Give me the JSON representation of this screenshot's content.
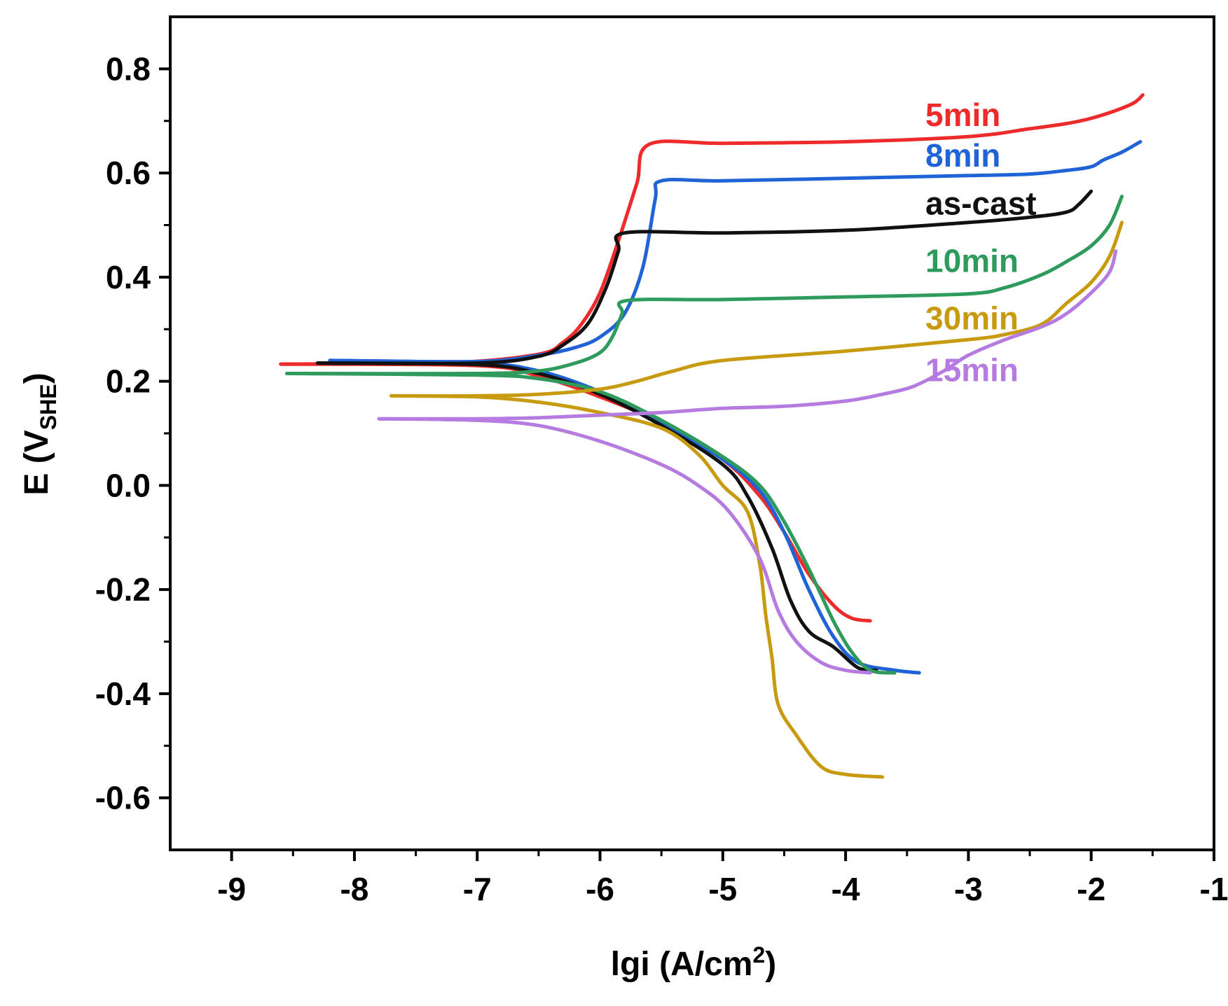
{
  "chart_data": {
    "type": "line",
    "title": "",
    "xlabel": "lgi (A/cm2)",
    "xlabel_main": "lgi (A/cm",
    "xlabel_sup": "2",
    "xlabel_close": ")",
    "ylabel": "E (VSHE)",
    "ylabel_main": "E (V",
    "ylabel_sub": "SHE",
    "ylabel_close": ")",
    "xlim": [
      -9.5,
      -1
    ],
    "ylim": [
      -0.7,
      0.9
    ],
    "xticks": [
      -9,
      -8,
      -7,
      -6,
      -5,
      -4,
      -3,
      -2,
      -1
    ],
    "xtick_labels": [
      "-9",
      "-8",
      "-7",
      "-6",
      "-5",
      "-4",
      "-3",
      "-2",
      "-1"
    ],
    "yticks": [
      0.8,
      0.6,
      0.4,
      0.2,
      0.0,
      -0.2,
      -0.4,
      -0.6
    ],
    "ytick_labels": [
      "0.8",
      "0.6",
      "0.4",
      "0.2",
      "0.0",
      "-0.2",
      "-0.4",
      "-0.6"
    ],
    "legend_labels": [
      {
        "text": "5min",
        "color": "#ee2b2b",
        "x": -3.35,
        "y": 0.69
      },
      {
        "text": "8min",
        "color": "#1f63d6",
        "x": -3.35,
        "y": 0.612
      },
      {
        "text": "as-cast",
        "color": "#111111",
        "x": -3.35,
        "y": 0.52
      },
      {
        "text": "10min",
        "color": "#2e9b5c",
        "x": -3.35,
        "y": 0.41
      },
      {
        "text": "30min",
        "color": "#c89a10",
        "x": -3.35,
        "y": 0.3
      },
      {
        "text": "15min",
        "color": "#b57be0",
        "x": -3.35,
        "y": 0.2
      }
    ],
    "series": [
      {
        "name": "5min",
        "color": "#ee2b2b",
        "anodic": [
          [
            -8.6,
            0.233
          ],
          [
            -7.2,
            0.236
          ],
          [
            -6.5,
            0.252
          ],
          [
            -6.3,
            0.275
          ],
          [
            -6.15,
            0.31
          ],
          [
            -6.0,
            0.37
          ],
          [
            -5.85,
            0.47
          ],
          [
            -5.7,
            0.58
          ],
          [
            -5.6,
            0.655
          ],
          [
            -5.0,
            0.657
          ],
          [
            -4.0,
            0.66
          ],
          [
            -3.0,
            0.67
          ],
          [
            -2.5,
            0.685
          ],
          [
            -2.2,
            0.695
          ],
          [
            -2.0,
            0.705
          ],
          [
            -1.8,
            0.72
          ],
          [
            -1.65,
            0.735
          ],
          [
            -1.58,
            0.75
          ]
        ],
        "cathodic": [
          [
            -8.6,
            0.233
          ],
          [
            -7.0,
            0.23
          ],
          [
            -6.5,
            0.21
          ],
          [
            -6.0,
            0.17
          ],
          [
            -5.5,
            0.12
          ],
          [
            -5.0,
            0.05
          ],
          [
            -4.7,
            -0.02
          ],
          [
            -4.5,
            -0.09
          ],
          [
            -4.3,
            -0.17
          ],
          [
            -4.1,
            -0.23
          ],
          [
            -3.95,
            -0.255
          ],
          [
            -3.8,
            -0.26
          ]
        ]
      },
      {
        "name": "8min",
        "color": "#1f63d6",
        "anodic": [
          [
            -8.2,
            0.24
          ],
          [
            -7.0,
            0.238
          ],
          [
            -6.5,
            0.25
          ],
          [
            -6.2,
            0.265
          ],
          [
            -6.0,
            0.285
          ],
          [
            -5.8,
            0.33
          ],
          [
            -5.65,
            0.42
          ],
          [
            -5.55,
            0.55
          ],
          [
            -5.5,
            0.585
          ],
          [
            -5.0,
            0.585
          ],
          [
            -4.0,
            0.59
          ],
          [
            -3.0,
            0.595
          ],
          [
            -2.5,
            0.598
          ],
          [
            -2.2,
            0.605
          ],
          [
            -2.0,
            0.612
          ],
          [
            -1.9,
            0.625
          ],
          [
            -1.75,
            0.64
          ],
          [
            -1.6,
            0.66
          ]
        ],
        "cathodic": [
          [
            -8.2,
            0.24
          ],
          [
            -7.0,
            0.235
          ],
          [
            -6.5,
            0.22
          ],
          [
            -6.0,
            0.18
          ],
          [
            -5.5,
            0.12
          ],
          [
            -5.0,
            0.05
          ],
          [
            -4.7,
            -0.01
          ],
          [
            -4.5,
            -0.09
          ],
          [
            -4.3,
            -0.2
          ],
          [
            -4.1,
            -0.29
          ],
          [
            -3.9,
            -0.34
          ],
          [
            -3.6,
            -0.355
          ],
          [
            -3.4,
            -0.36
          ]
        ]
      },
      {
        "name": "as-cast",
        "color": "#111111",
        "anodic": [
          [
            -8.3,
            0.235
          ],
          [
            -7.0,
            0.235
          ],
          [
            -6.5,
            0.248
          ],
          [
            -6.3,
            0.27
          ],
          [
            -6.1,
            0.31
          ],
          [
            -5.95,
            0.38
          ],
          [
            -5.85,
            0.45
          ],
          [
            -5.8,
            0.485
          ],
          [
            -5.0,
            0.485
          ],
          [
            -4.0,
            0.49
          ],
          [
            -3.0,
            0.505
          ],
          [
            -2.5,
            0.515
          ],
          [
            -2.2,
            0.525
          ],
          [
            -2.1,
            0.54
          ],
          [
            -2.0,
            0.565
          ]
        ],
        "cathodic": [
          [
            -8.3,
            0.235
          ],
          [
            -7.0,
            0.232
          ],
          [
            -6.5,
            0.215
          ],
          [
            -6.0,
            0.175
          ],
          [
            -5.5,
            0.115
          ],
          [
            -5.0,
            0.04
          ],
          [
            -4.8,
            -0.02
          ],
          [
            -4.6,
            -0.12
          ],
          [
            -4.45,
            -0.22
          ],
          [
            -4.3,
            -0.28
          ],
          [
            -4.1,
            -0.31
          ],
          [
            -3.9,
            -0.35
          ],
          [
            -3.75,
            -0.355
          ]
        ]
      },
      {
        "name": "10min",
        "color": "#2e9b5c",
        "anodic": [
          [
            -8.55,
            0.215
          ],
          [
            -7.0,
            0.215
          ],
          [
            -6.5,
            0.22
          ],
          [
            -6.2,
            0.235
          ],
          [
            -6.0,
            0.255
          ],
          [
            -5.9,
            0.285
          ],
          [
            -5.82,
            0.33
          ],
          [
            -5.78,
            0.355
          ],
          [
            -5.0,
            0.357
          ],
          [
            -4.0,
            0.362
          ],
          [
            -3.0,
            0.368
          ],
          [
            -2.7,
            0.38
          ],
          [
            -2.4,
            0.405
          ],
          [
            -2.2,
            0.43
          ],
          [
            -2.0,
            0.46
          ],
          [
            -1.85,
            0.5
          ],
          [
            -1.75,
            0.555
          ]
        ],
        "cathodic": [
          [
            -8.55,
            0.215
          ],
          [
            -7.0,
            0.212
          ],
          [
            -6.5,
            0.205
          ],
          [
            -6.0,
            0.18
          ],
          [
            -5.5,
            0.125
          ],
          [
            -5.0,
            0.055
          ],
          [
            -4.7,
            0.0
          ],
          [
            -4.5,
            -0.07
          ],
          [
            -4.3,
            -0.16
          ],
          [
            -4.1,
            -0.26
          ],
          [
            -3.95,
            -0.32
          ],
          [
            -3.8,
            -0.355
          ],
          [
            -3.6,
            -0.36
          ]
        ]
      },
      {
        "name": "30min",
        "color": "#c89a10",
        "anodic": [
          [
            -7.7,
            0.172
          ],
          [
            -7.0,
            0.172
          ],
          [
            -6.5,
            0.175
          ],
          [
            -6.0,
            0.185
          ],
          [
            -5.7,
            0.2
          ],
          [
            -5.4,
            0.22
          ],
          [
            -5.0,
            0.24
          ],
          [
            -4.0,
            0.258
          ],
          [
            -3.0,
            0.28
          ],
          [
            -2.7,
            0.29
          ],
          [
            -2.4,
            0.31
          ],
          [
            -2.2,
            0.35
          ],
          [
            -2.0,
            0.39
          ],
          [
            -1.85,
            0.44
          ],
          [
            -1.75,
            0.505
          ]
        ],
        "cathodic": [
          [
            -7.7,
            0.172
          ],
          [
            -7.0,
            0.17
          ],
          [
            -6.5,
            0.16
          ],
          [
            -6.0,
            0.14
          ],
          [
            -5.5,
            0.11
          ],
          [
            -5.2,
            0.06
          ],
          [
            -5.0,
            0.0
          ],
          [
            -4.8,
            -0.05
          ],
          [
            -4.7,
            -0.15
          ],
          [
            -4.65,
            -0.25
          ],
          [
            -4.6,
            -0.33
          ],
          [
            -4.55,
            -0.42
          ],
          [
            -4.4,
            -0.48
          ],
          [
            -4.2,
            -0.54
          ],
          [
            -4.0,
            -0.555
          ],
          [
            -3.7,
            -0.56
          ]
        ]
      },
      {
        "name": "15min",
        "color": "#b57be0",
        "anodic": [
          [
            -7.8,
            0.128
          ],
          [
            -7.0,
            0.128
          ],
          [
            -6.5,
            0.13
          ],
          [
            -6.0,
            0.135
          ],
          [
            -5.5,
            0.14
          ],
          [
            -5.0,
            0.148
          ],
          [
            -4.5,
            0.152
          ],
          [
            -4.0,
            0.162
          ],
          [
            -3.7,
            0.175
          ],
          [
            -3.45,
            0.19
          ],
          [
            -3.2,
            0.22
          ],
          [
            -3.0,
            0.25
          ],
          [
            -2.7,
            0.28
          ],
          [
            -2.4,
            0.305
          ],
          [
            -2.2,
            0.33
          ],
          [
            -2.0,
            0.37
          ],
          [
            -1.85,
            0.41
          ],
          [
            -1.8,
            0.45
          ]
        ],
        "cathodic": [
          [
            -7.8,
            0.128
          ],
          [
            -7.0,
            0.125
          ],
          [
            -6.5,
            0.115
          ],
          [
            -6.0,
            0.085
          ],
          [
            -5.5,
            0.04
          ],
          [
            -5.2,
            0.0
          ],
          [
            -4.95,
            -0.05
          ],
          [
            -4.7,
            -0.14
          ],
          [
            -4.55,
            -0.24
          ],
          [
            -4.4,
            -0.3
          ],
          [
            -4.2,
            -0.34
          ],
          [
            -4.0,
            -0.355
          ],
          [
            -3.8,
            -0.36
          ]
        ]
      }
    ]
  }
}
